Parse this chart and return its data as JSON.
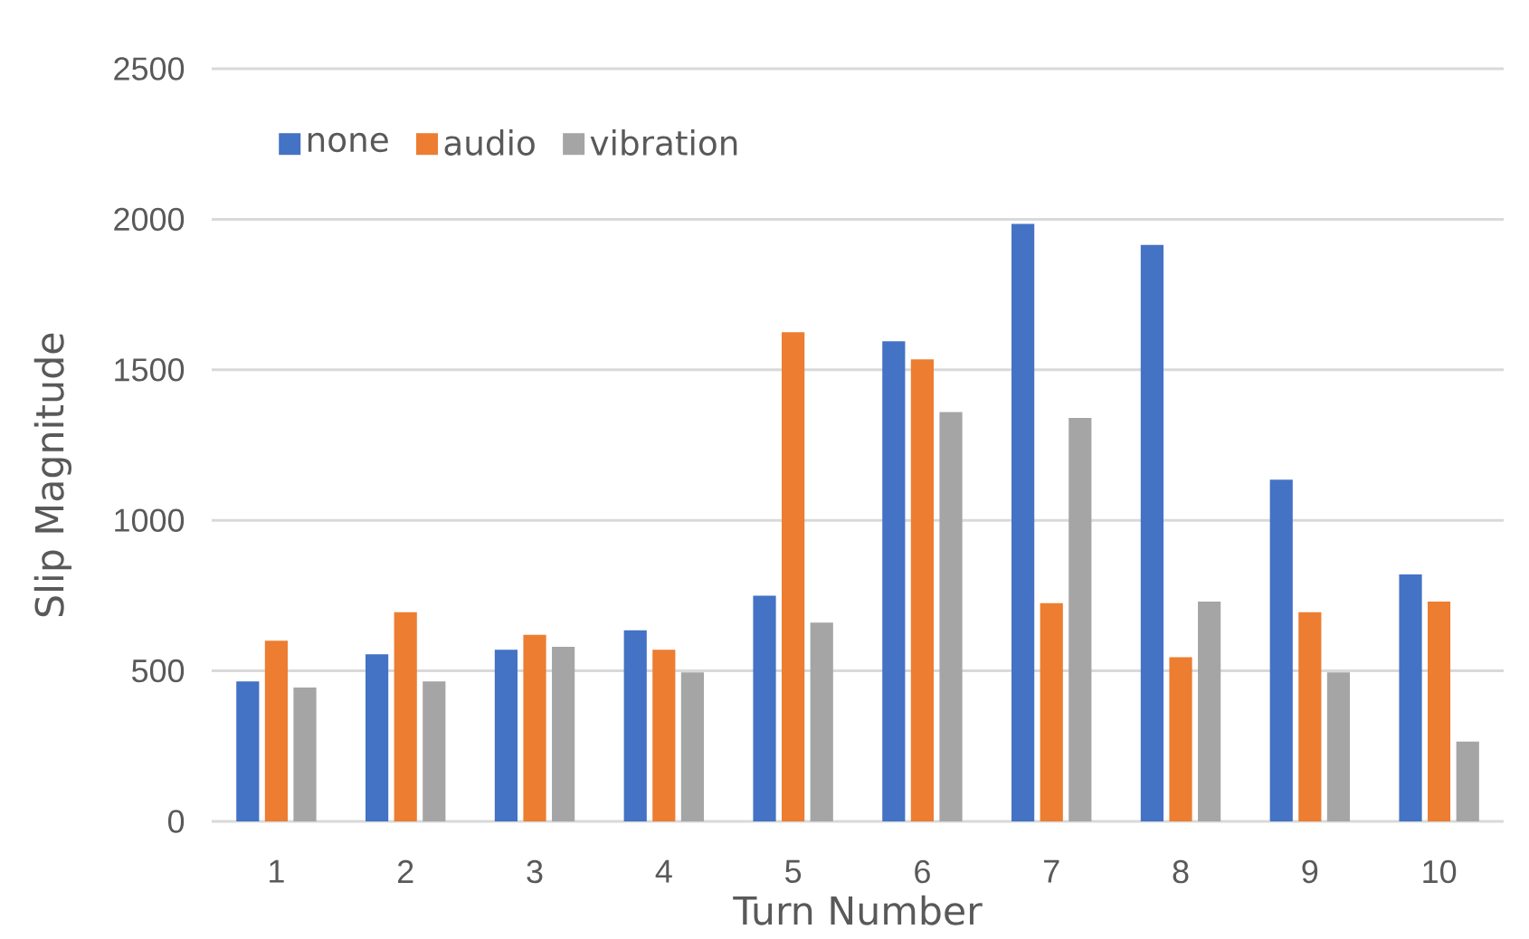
{
  "chart_data": {
    "type": "bar",
    "xlabel": "Turn Number",
    "ylabel": "Slip Magnitude",
    "categories": [
      "1",
      "2",
      "3",
      "4",
      "5",
      "6",
      "7",
      "8",
      "9",
      "10"
    ],
    "series": [
      {
        "name": "none",
        "color": "#4472c4",
        "values": [
          465,
          555,
          570,
          635,
          750,
          1595,
          1985,
          1915,
          1135,
          820
        ]
      },
      {
        "name": "audio",
        "color": "#ed7d31",
        "values": [
          600,
          695,
          620,
          570,
          1625,
          1535,
          725,
          545,
          695,
          730
        ]
      },
      {
        "name": "vibration",
        "color": "#a5a5a5",
        "values": [
          445,
          465,
          580,
          495,
          660,
          1360,
          1340,
          730,
          495,
          265
        ]
      }
    ],
    "ylim": [
      0,
      2500
    ],
    "yticks": [
      0,
      500,
      1000,
      1500,
      2000,
      2500
    ],
    "grid": "y",
    "legend": "top left"
  }
}
